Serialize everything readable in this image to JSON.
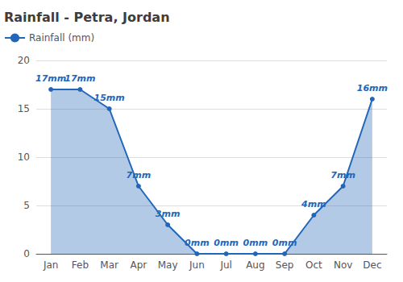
{
  "chart_data": {
    "type": "area",
    "title": "Rainfall - Petra, Jordan",
    "categories": [
      "Jan",
      "Feb",
      "Mar",
      "Apr",
      "May",
      "Jun",
      "Jul",
      "Aug",
      "Sep",
      "Oct",
      "Nov",
      "Dec"
    ],
    "series": [
      {
        "name": "Rainfall (mm)",
        "color": "#2166b8",
        "values": [
          17,
          17,
          15,
          7,
          3,
          0,
          0,
          0,
          0,
          4,
          7,
          16
        ],
        "value_labels": [
          "17mm",
          "17mm",
          "15mm",
          "7mm",
          "3mm",
          "0mm",
          "0mm",
          "0mm",
          "0mm",
          "4mm",
          "7mm",
          "16mm"
        ]
      }
    ],
    "ylim": [
      0,
      20
    ],
    "yticks": [
      0,
      5,
      10,
      15,
      20
    ],
    "grid": true,
    "legend": "upper left",
    "data_labels": true,
    "marker": "circle"
  }
}
